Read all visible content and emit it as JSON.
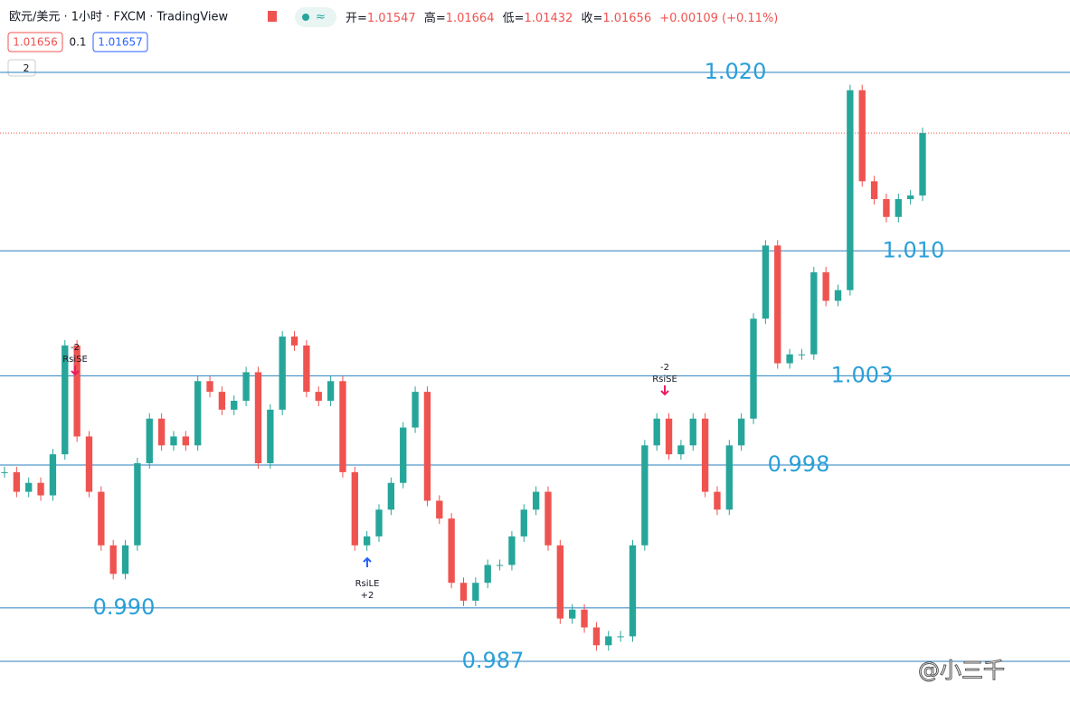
{
  "header": {
    "symbol": "欧元/美元 · 1小时 · FXCM · TradingView",
    "open_label": "开=",
    "open": "1.01547",
    "high_label": "高=",
    "high": "1.01664",
    "low_label": "低=",
    "low": "1.01432",
    "close_label": "收=",
    "close": "1.01656",
    "change": "+0.00109 (+0.11%)",
    "bid": "1.01656",
    "spread": "0.1",
    "ask": "1.01657",
    "indicators": "2"
  },
  "chart_data": {
    "type": "candlestick",
    "values": [
      0.9976,
      0.9965,
      0.997,
      0.9963,
      0.9986,
      1.0047,
      0.9996,
      0.9965,
      0.9935,
      0.9919,
      0.9935,
      0.9981,
      1.0006,
      0.9991,
      0.9996,
      0.9991,
      1.0027,
      1.0021,
      1.0011,
      1.0016,
      1.0032,
      0.9981,
      1.0011,
      1.0052,
      1.0047,
      1.0021,
      1.0016,
      1.0027,
      0.9976,
      0.9935,
      0.994,
      0.9955,
      0.997,
      1.0001,
      1.0021,
      0.996,
      0.995,
      0.9914,
      0.9904,
      0.9914,
      0.9924,
      0.9924,
      0.994,
      0.9955,
      0.9965,
      0.9935,
      0.9894,
      0.9899,
      0.9889,
      0.9879,
      0.9884,
      0.9884,
      0.9935,
      0.9991,
      1.0006,
      0.9986,
      0.9991,
      1.0006,
      0.9965,
      0.9955,
      0.9991,
      1.0006,
      1.0062,
      1.0103,
      1.0037,
      1.0042,
      1.0042,
      1.0088,
      1.0072,
      1.0078,
      1.019,
      1.0139,
      1.0129,
      1.0119,
      1.0129,
      1.0131,
      1.0166
    ],
    "up_color": "#26a69a",
    "down_color": "#ef5350",
    "levels": [
      {
        "value": 1.02,
        "label": "1.020"
      },
      {
        "value": 1.01,
        "label": "1.010"
      },
      {
        "value": 1.003,
        "label": "1.003"
      },
      {
        "value": 0.998,
        "label": "0.998"
      },
      {
        "value": 0.99,
        "label": "0.990"
      },
      {
        "value": 0.987,
        "label": "0.987"
      }
    ],
    "signals": [
      {
        "top": "-2",
        "bottom": "RsiSE"
      },
      {
        "top": "RsiLE",
        "bottom": "+2"
      },
      {
        "top": "-2",
        "bottom": "RsiSE"
      }
    ]
  },
  "watermark": "@小三千"
}
